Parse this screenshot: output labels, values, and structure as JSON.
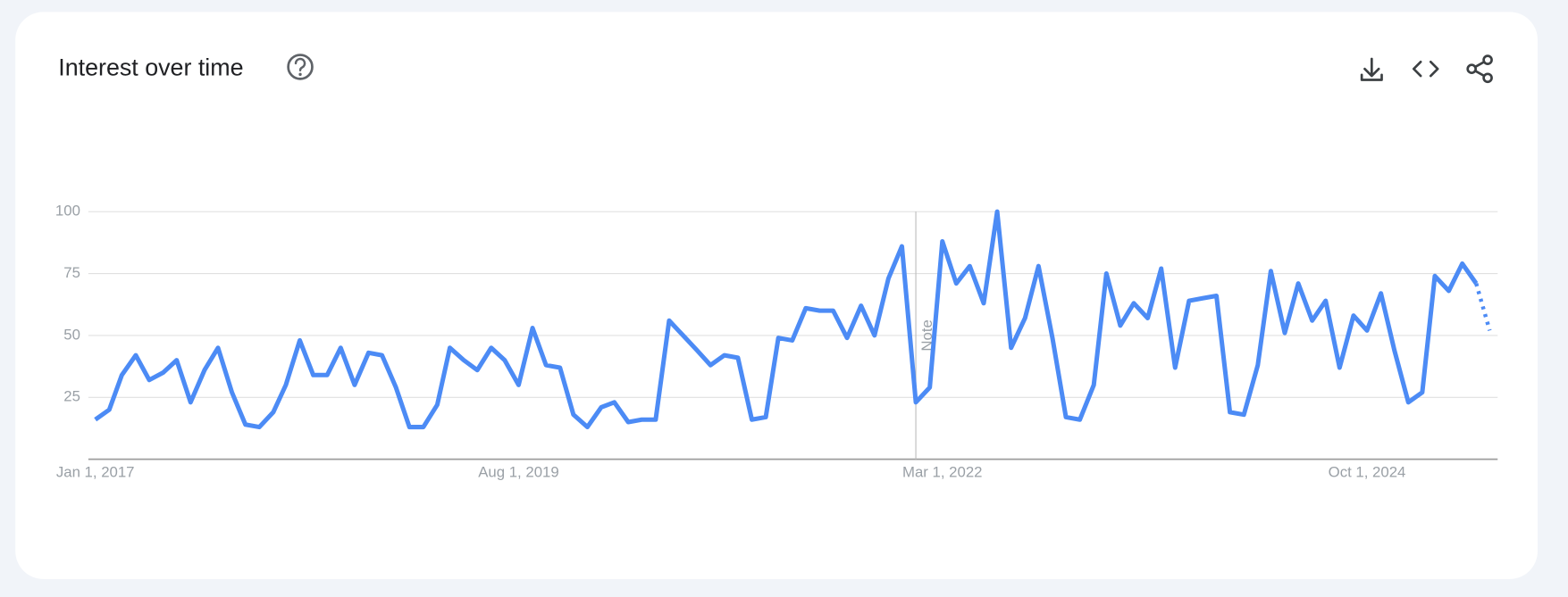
{
  "chart_data": {
    "type": "line",
    "title": "Interest over time",
    "x": [
      "2017-01-01",
      "2017-02-01",
      "2017-03-01",
      "2017-04-01",
      "2017-05-01",
      "2017-06-01",
      "2017-07-01",
      "2017-08-01",
      "2017-09-01",
      "2017-10-01",
      "2017-11-01",
      "2017-12-01",
      "2018-01-01",
      "2018-02-01",
      "2018-03-01",
      "2018-04-01",
      "2018-05-01",
      "2018-06-01",
      "2018-07-01",
      "2018-08-01",
      "2018-09-01",
      "2018-10-01",
      "2018-11-01",
      "2018-12-01",
      "2019-01-01",
      "2019-02-01",
      "2019-03-01",
      "2019-04-01",
      "2019-05-01",
      "2019-06-01",
      "2019-07-01",
      "2019-08-01",
      "2019-09-01",
      "2019-10-01",
      "2019-11-01",
      "2019-12-01",
      "2020-01-01",
      "2020-02-01",
      "2020-03-01",
      "2020-04-01",
      "2020-05-01",
      "2020-06-01",
      "2020-07-01",
      "2020-08-01",
      "2020-09-01",
      "2020-10-01",
      "2020-11-01",
      "2020-12-01",
      "2021-01-01",
      "2021-02-01",
      "2021-03-01",
      "2021-04-01",
      "2021-05-01",
      "2021-06-01",
      "2021-07-01",
      "2021-08-01",
      "2021-09-01",
      "2021-10-01",
      "2021-11-01",
      "2021-12-01",
      "2022-01-01",
      "2022-02-01",
      "2022-03-01",
      "2022-04-01",
      "2022-05-01",
      "2022-06-01",
      "2022-07-01",
      "2022-08-01",
      "2022-09-01",
      "2022-10-01",
      "2022-11-01",
      "2022-12-01",
      "2023-01-01",
      "2023-02-01",
      "2023-03-01",
      "2023-04-01",
      "2023-05-01",
      "2023-06-01",
      "2023-07-01",
      "2023-08-01",
      "2023-09-01",
      "2023-10-01",
      "2023-11-01",
      "2023-12-01",
      "2024-01-01",
      "2024-02-01",
      "2024-03-01",
      "2024-04-01",
      "2024-05-01",
      "2024-06-01",
      "2024-07-01",
      "2024-08-01",
      "2024-09-01",
      "2024-10-01",
      "2024-11-01",
      "2024-12-01",
      "2025-01-01",
      "2025-02-01",
      "2025-03-01",
      "2025-04-01",
      "2025-05-01",
      "2025-06-01",
      "2025-07-01"
    ],
    "values": [
      16,
      20,
      34,
      42,
      32,
      35,
      40,
      23,
      36,
      45,
      27,
      14,
      13,
      19,
      30,
      48,
      34,
      34,
      45,
      30,
      43,
      42,
      29,
      13,
      13,
      22,
      45,
      40,
      36,
      45,
      40,
      30,
      53,
      38,
      37,
      18,
      13,
      21,
      23,
      15,
      16,
      16,
      56,
      50,
      44,
      38,
      42,
      41,
      16,
      17,
      49,
      48,
      61,
      60,
      60,
      49,
      62,
      50,
      73,
      86,
      23,
      29,
      88,
      71,
      78,
      63,
      100,
      45,
      57,
      78,
      49,
      17,
      16,
      30,
      75,
      54,
      63,
      57,
      77,
      37,
      64,
      65,
      66,
      19,
      18,
      38,
      76,
      51,
      71,
      56,
      64,
      37,
      58,
      52,
      67,
      44,
      23,
      27,
      74,
      68,
      79,
      71,
      52
    ],
    "color": "#4c8bf5",
    "incomplete_from": "2025-06-01",
    "xlim": [
      "2017-01-01",
      "2025-07-01"
    ],
    "xticks": [
      {
        "value": "2017-01-01",
        "label": "Jan 1, 2017"
      },
      {
        "value": "2019-08-01",
        "label": "Aug 1, 2019"
      },
      {
        "value": "2022-03-01",
        "label": "Mar 1, 2022"
      },
      {
        "value": "2024-10-01",
        "label": "Oct 1, 2024"
      }
    ],
    "ylim": [
      0,
      100
    ],
    "yticks": [
      25,
      50,
      75,
      100
    ],
    "grid": true,
    "annotations": [
      {
        "x": "2022-01-01",
        "label": "Note"
      }
    ]
  }
}
